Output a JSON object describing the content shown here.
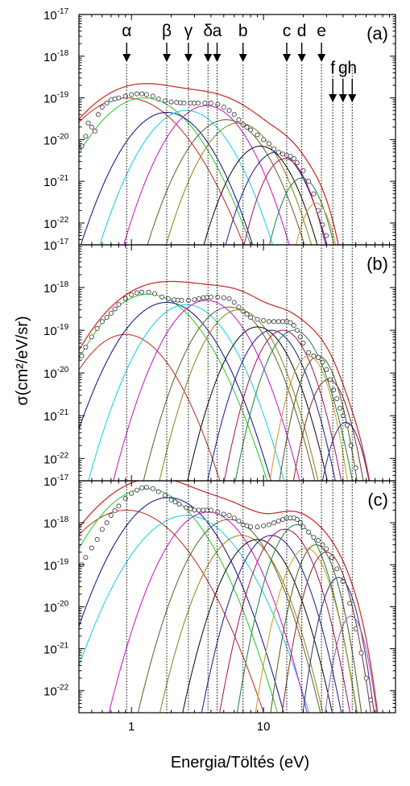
{
  "chart_data": {
    "type": "line",
    "xlabel": "Energia/Töltés (eV)",
    "ylabel": "σ(cm²/eV/sr)",
    "x_scale": "log",
    "y_scale": "log",
    "xlim": [
      0.4,
      100
    ],
    "ylim": [
      3e-23,
      1e-17
    ],
    "x_tick_labels": [
      {
        "value": 1,
        "label": "1"
      },
      {
        "value": 10,
        "label": "10"
      }
    ],
    "y_tick_labels": [
      {
        "exp": -17,
        "base": "10",
        "sup": "-17"
      },
      {
        "exp": -18,
        "base": "10",
        "sup": "-18"
      },
      {
        "exp": -19,
        "base": "10",
        "sup": "-19"
      },
      {
        "exp": -20,
        "base": "10",
        "sup": "-20"
      },
      {
        "exp": -21,
        "base": "10",
        "sup": "-21"
      },
      {
        "exp": -22,
        "base": "10",
        "sup": "-22"
      }
    ],
    "peak_lines": [
      {
        "label": "α",
        "x": 0.92,
        "arrow_row": 1
      },
      {
        "label": "β",
        "x": 1.85,
        "arrow_row": 1
      },
      {
        "label": "γ",
        "x": 2.7,
        "arrow_row": 1
      },
      {
        "label": "δ",
        "x": 3.8,
        "arrow_row": 1
      },
      {
        "label": "a",
        "x": 4.45,
        "arrow_row": 1
      },
      {
        "label": "b",
        "x": 7.0,
        "arrow_row": 1
      },
      {
        "label": "c",
        "x": 15.0,
        "arrow_row": 1
      },
      {
        "label": "d",
        "x": 19.5,
        "arrow_row": 1
      },
      {
        "label": "e",
        "x": 27.5,
        "arrow_row": 1
      },
      {
        "label": "f",
        "x": 33.5,
        "arrow_row": 2
      },
      {
        "label": "g",
        "x": 40.0,
        "arrow_row": 2
      },
      {
        "label": "h",
        "x": 47.0,
        "arrow_row": 2
      }
    ],
    "gaussian_colors": [
      "#c0392b",
      "#33cc33",
      "#1f1f8f",
      "#22d3e0",
      "#cc22cc",
      "#6b6b3a",
      "#9a8a20",
      "#1a1a1a",
      "#2a2a9a",
      "#b02060",
      "#2a8a4a",
      "#d4a030",
      "#556b2f",
      "#8b3a3a",
      "#3a3a8b",
      "#a060c0"
    ],
    "panels": [
      {
        "label": "(a)",
        "components": [
          {
            "center": 0.92,
            "peak": 1e-19,
            "width": 0.22
          },
          {
            "center": 1.25,
            "peak": 1e-19,
            "width": 0.2
          },
          {
            "center": 1.85,
            "peak": 4.5e-20,
            "width": 0.17
          },
          {
            "center": 2.6,
            "peak": 5e-20,
            "width": 0.17
          },
          {
            "center": 3.7,
            "peak": 6.5e-20,
            "width": 0.16
          },
          {
            "center": 5.2,
            "peak": 3e-20,
            "width": 0.16
          },
          {
            "center": 6.5,
            "peak": 2.5e-20,
            "width": 0.15
          },
          {
            "center": 9.5,
            "peak": 7e-21,
            "width": 0.13
          },
          {
            "center": 12.5,
            "peak": 5e-21,
            "width": 0.12
          },
          {
            "center": 14.5,
            "peak": 3.5e-21,
            "width": 0.1
          },
          {
            "center": 19.5,
            "peak": 1.2e-21,
            "width": 0.09
          },
          {
            "center": 25.0,
            "peak": 3e-22,
            "width": 0.07
          }
        ],
        "data_points": [
          [
            0.42,
            7e-21
          ],
          [
            0.45,
            1.2e-20
          ],
          [
            0.47,
            2.5e-20
          ],
          [
            0.5,
            2e-20
          ],
          [
            0.53,
            1.6e-20
          ],
          [
            0.56,
            4e-20
          ],
          [
            0.6,
            6e-20
          ],
          [
            0.65,
            7.5e-20
          ],
          [
            0.7,
            9e-20
          ],
          [
            0.8,
            1e-19
          ],
          [
            0.9,
            1.1e-19
          ],
          [
            1.0,
            1.2e-19
          ],
          [
            1.1,
            1.25e-19
          ],
          [
            1.2,
            1.25e-19
          ],
          [
            1.3,
            1.2e-19
          ],
          [
            1.45,
            1.1e-19
          ],
          [
            1.6,
            9.5e-20
          ],
          [
            1.8,
            8.5e-20
          ],
          [
            2.0,
            8e-20
          ],
          [
            2.2,
            7.8e-20
          ],
          [
            2.5,
            7.5e-20
          ],
          [
            2.8,
            7.5e-20
          ],
          [
            3.2,
            7.5e-20
          ],
          [
            3.6,
            7.5e-20
          ],
          [
            4.0,
            7.5e-20
          ],
          [
            4.5,
            7e-20
          ],
          [
            5.0,
            6e-20
          ],
          [
            5.5,
            5e-20
          ],
          [
            6.0,
            4e-20
          ],
          [
            6.5,
            3e-20
          ],
          [
            7.0,
            2.3e-20
          ],
          [
            8.0,
            1.7e-20
          ],
          [
            9.0,
            1.3e-20
          ],
          [
            10.0,
            1e-20
          ],
          [
            11.0,
            8e-21
          ],
          [
            12.0,
            6e-21
          ],
          [
            13.0,
            5e-21
          ],
          [
            14.0,
            4.5e-21
          ],
          [
            15.0,
            4.2e-21
          ],
          [
            16.0,
            4e-21
          ],
          [
            17.0,
            3.5e-21
          ],
          [
            18.0,
            2.8e-21
          ],
          [
            20.0,
            1.8e-21
          ],
          [
            22.0,
            1e-21
          ],
          [
            24.0,
            5e-22
          ],
          [
            26.0,
            2e-22
          ],
          [
            28.0,
            9e-23
          ],
          [
            30.0,
            5e-23
          ]
        ]
      },
      {
        "label": "(b)",
        "components": [
          {
            "center": 0.9,
            "peak": 8e-20,
            "width": 0.18
          },
          {
            "center": 1.35,
            "peak": 7e-19,
            "width": 0.2
          },
          {
            "center": 1.85,
            "peak": 4.5e-19,
            "width": 0.18
          },
          {
            "center": 2.6,
            "peak": 4e-19,
            "width": 0.17
          },
          {
            "center": 3.7,
            "peak": 5e-19,
            "width": 0.16
          },
          {
            "center": 5.5,
            "peak": 3.5e-19,
            "width": 0.15
          },
          {
            "center": 6.5,
            "peak": 3e-19,
            "width": 0.14
          },
          {
            "center": 9.0,
            "peak": 1.2e-19,
            "width": 0.13
          },
          {
            "center": 11.5,
            "peak": 1e-19,
            "width": 0.12
          },
          {
            "center": 14.0,
            "peak": 1e-19,
            "width": 0.11
          },
          {
            "center": 17.0,
            "peak": 1e-19,
            "width": 0.11
          },
          {
            "center": 22.0,
            "peak": 2.5e-20,
            "width": 0.08
          },
          {
            "center": 26.0,
            "peak": 2.5e-20,
            "width": 0.08
          },
          {
            "center": 31.0,
            "peak": 7e-21,
            "width": 0.08
          },
          {
            "center": 42.0,
            "peak": 7e-22,
            "width": 0.07
          }
        ],
        "data_points": [
          [
            0.42,
            2.5e-20
          ],
          [
            0.45,
            4e-20
          ],
          [
            0.5,
            7e-20
          ],
          [
            0.55,
            1.1e-19
          ],
          [
            0.6,
            1.6e-19
          ],
          [
            0.65,
            2e-19
          ],
          [
            0.7,
            2.5e-19
          ],
          [
            0.8,
            4e-19
          ],
          [
            0.9,
            5.5e-19
          ],
          [
            1.0,
            6.8e-19
          ],
          [
            1.1,
            7.5e-19
          ],
          [
            1.2,
            7.8e-19
          ],
          [
            1.35,
            7.8e-19
          ],
          [
            1.5,
            7.2e-19
          ],
          [
            1.7,
            6e-19
          ],
          [
            1.9,
            5.5e-19
          ],
          [
            2.1,
            5.2e-19
          ],
          [
            2.4,
            5e-19
          ],
          [
            2.7,
            5e-19
          ],
          [
            3.0,
            5.2e-19
          ],
          [
            3.5,
            5.8e-19
          ],
          [
            4.0,
            6e-19
          ],
          [
            4.5,
            6e-19
          ],
          [
            5.0,
            5.8e-19
          ],
          [
            5.5,
            5.5e-19
          ],
          [
            6.0,
            4.5e-19
          ],
          [
            6.5,
            3.5e-19
          ],
          [
            7.0,
            2.8e-19
          ],
          [
            8.0,
            2e-19
          ],
          [
            9.0,
            1.8e-19
          ],
          [
            10.0,
            1.7e-19
          ],
          [
            11.0,
            1.6e-19
          ],
          [
            12.0,
            1.6e-19
          ],
          [
            13.0,
            1.6e-19
          ],
          [
            14.0,
            1.6e-19
          ],
          [
            15.0,
            1.6e-19
          ],
          [
            16.0,
            1.5e-19
          ],
          [
            17.0,
            1.3e-19
          ],
          [
            18.0,
            1e-19
          ],
          [
            19.0,
            7e-20
          ],
          [
            20.0,
            5e-20
          ],
          [
            22.0,
            3e-20
          ],
          [
            24.0,
            2.5e-20
          ],
          [
            26.0,
            2.3e-20
          ],
          [
            28.0,
            1.8e-20
          ],
          [
            30.0,
            1.2e-20
          ],
          [
            32.0,
            7e-21
          ],
          [
            34.0,
            4e-21
          ],
          [
            36.0,
            2.5e-21
          ],
          [
            38.0,
            1.5e-21
          ],
          [
            40.0,
            1e-21
          ],
          [
            43.0,
            6e-22
          ],
          [
            46.0,
            2e-22
          ],
          [
            50.0,
            6e-23
          ]
        ]
      },
      {
        "label": "(c)",
        "components": [
          {
            "center": 0.92,
            "peak": 2e-18,
            "width": 0.22
          },
          {
            "center": 1.3,
            "peak": 6.5e-18,
            "width": 0.2
          },
          {
            "center": 1.9,
            "peak": 4e-18,
            "width": 0.18
          },
          {
            "center": 2.6,
            "peak": 1.5e-18,
            "width": 0.2
          },
          {
            "center": 3.8,
            "peak": 1.8e-18,
            "width": 0.16
          },
          {
            "center": 5.5,
            "peak": 1.2e-18,
            "width": 0.15
          },
          {
            "center": 6.8,
            "peak": 5e-19,
            "width": 0.14
          },
          {
            "center": 9.0,
            "peak": 4e-19,
            "width": 0.13
          },
          {
            "center": 11.5,
            "peak": 5e-19,
            "width": 0.12
          },
          {
            "center": 14.5,
            "peak": 7e-19,
            "width": 0.11
          },
          {
            "center": 18.0,
            "peak": 9e-19,
            "width": 0.1
          },
          {
            "center": 21.0,
            "peak": 2.5e-19,
            "width": 0.09
          },
          {
            "center": 25.0,
            "peak": 3e-19,
            "width": 0.08
          },
          {
            "center": 30.0,
            "peak": 2e-19,
            "width": 0.08
          },
          {
            "center": 37.0,
            "peak": 5e-20,
            "width": 0.07
          },
          {
            "center": 46.0,
            "peak": 6e-21,
            "width": 0.06
          }
        ],
        "data_points": [
          [
            0.42,
            1e-19
          ],
          [
            0.45,
            1.5e-19
          ],
          [
            0.5,
            2.5e-19
          ],
          [
            0.55,
            4e-19
          ],
          [
            0.6,
            7e-19
          ],
          [
            0.65,
            1e-18
          ],
          [
            0.7,
            1.5e-18
          ],
          [
            0.8,
            2.5e-18
          ],
          [
            0.9,
            3.8e-18
          ],
          [
            1.0,
            5e-18
          ],
          [
            1.1,
            6e-18
          ],
          [
            1.2,
            6.8e-18
          ],
          [
            1.3,
            7e-18
          ],
          [
            1.45,
            6.5e-18
          ],
          [
            1.6,
            5.5e-18
          ],
          [
            1.8,
            4.5e-18
          ],
          [
            2.0,
            3.5e-18
          ],
          [
            2.3,
            2.8e-18
          ],
          [
            2.6,
            2.3e-18
          ],
          [
            3.0,
            2e-18
          ],
          [
            3.5,
            2e-18
          ],
          [
            4.0,
            2e-18
          ],
          [
            4.5,
            1.8e-18
          ],
          [
            5.0,
            1.6e-18
          ],
          [
            5.5,
            1.5e-18
          ],
          [
            6.0,
            1.3e-18
          ],
          [
            6.5,
            1.1e-18
          ],
          [
            7.0,
            9e-19
          ],
          [
            8.0,
            8e-19
          ],
          [
            9.0,
            8e-19
          ],
          [
            10.0,
            8.5e-19
          ],
          [
            11.0,
            9e-19
          ],
          [
            12.0,
            1e-18
          ],
          [
            13.0,
            1.1e-18
          ],
          [
            14.0,
            1.2e-18
          ],
          [
            15.0,
            1.3e-18
          ],
          [
            16.0,
            1.3e-18
          ],
          [
            17.0,
            1.3e-18
          ],
          [
            18.0,
            1.2e-18
          ],
          [
            19.0,
            1e-18
          ],
          [
            20.0,
            8e-19
          ],
          [
            22.0,
            6e-19
          ],
          [
            24.0,
            4.5e-19
          ],
          [
            26.0,
            3.8e-19
          ],
          [
            28.0,
            3e-19
          ],
          [
            30.0,
            2.4e-19
          ],
          [
            33.0,
            1.5e-19
          ],
          [
            36.0,
            8e-20
          ],
          [
            40.0,
            4e-20
          ],
          [
            45.0,
            1.2e-20
          ],
          [
            50.0,
            3e-21
          ],
          [
            55.0,
            8e-22
          ],
          [
            60.0,
            2e-22
          ],
          [
            65.0,
            6e-23
          ]
        ]
      }
    ]
  }
}
